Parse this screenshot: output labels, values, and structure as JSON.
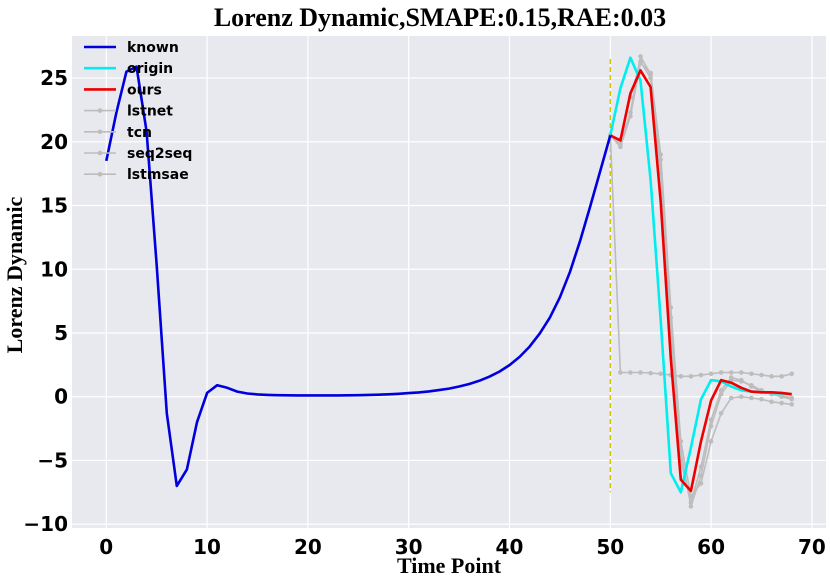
{
  "chart_data": {
    "type": "line",
    "title": "Lorenz Dynamic,SMAPE:0.15,RAE:0.03",
    "xlabel": "Time Point",
    "ylabel": "Lorenz Dynamic",
    "xlim": [
      -3.4,
      71.4
    ],
    "ylim": [
      -10.3,
      28.3
    ],
    "xticks": [
      0,
      10,
      20,
      30,
      40,
      50,
      60,
      70
    ],
    "yticks": [
      -10,
      -5,
      0,
      5,
      10,
      15,
      20,
      25
    ],
    "ytick_labels": [
      "−10",
      "−5",
      "0",
      "5",
      "10",
      "15",
      "20",
      "25"
    ],
    "grid": true,
    "legend_position": "top-left",
    "background": "#e8e8ef",
    "vline": {
      "x": 50,
      "ymin": -7.5,
      "ymax": 26.5,
      "color": "#d4c400"
    },
    "series": [
      {
        "name": "known",
        "color": "#0000dd",
        "width": 2.6,
        "marker": "none",
        "x": [
          0,
          1,
          2,
          3,
          4,
          5,
          6,
          7,
          8,
          9,
          10,
          11,
          12,
          13,
          14,
          15,
          16,
          17,
          18,
          19,
          20,
          21,
          22,
          23,
          24,
          25,
          26,
          27,
          28,
          29,
          30,
          31,
          32,
          33,
          34,
          35,
          36,
          37,
          38,
          39,
          40,
          41,
          42,
          43,
          44,
          45,
          46,
          47,
          48,
          49,
          50
        ],
        "y": [
          18.5,
          22.3,
          25.5,
          25.9,
          20.8,
          10.3,
          -1.3,
          -7.0,
          -5.7,
          -2.0,
          0.3,
          0.9,
          0.7,
          0.4,
          0.25,
          0.18,
          0.14,
          0.12,
          0.11,
          0.1,
          0.1,
          0.1,
          0.1,
          0.1,
          0.11,
          0.12,
          0.14,
          0.16,
          0.19,
          0.23,
          0.28,
          0.34,
          0.42,
          0.52,
          0.64,
          0.8,
          1.0,
          1.25,
          1.57,
          1.97,
          2.48,
          3.12,
          3.93,
          4.95,
          6.2,
          7.8,
          9.8,
          12.2,
          14.9,
          17.7,
          20.5
        ]
      },
      {
        "name": "origin",
        "color": "#00eeee",
        "width": 2.6,
        "marker": "none",
        "x": [
          50,
          51,
          52,
          53,
          54,
          55,
          56,
          57,
          58,
          59,
          60,
          61,
          62,
          63,
          64,
          65,
          66,
          67,
          68
        ],
        "y": [
          20.5,
          24.2,
          26.6,
          24.8,
          17.0,
          6.0,
          -6.0,
          -7.5,
          -4.0,
          -0.2,
          1.3,
          1.2,
          0.8,
          0.5,
          0.4,
          0.35,
          0.3,
          0.25,
          0.2
        ]
      },
      {
        "name": "ours",
        "color": "#ee0000",
        "width": 2.6,
        "marker": "none",
        "x": [
          50,
          51,
          52,
          53,
          54,
          55,
          56,
          57,
          58,
          59,
          60,
          61,
          62,
          63,
          64,
          65,
          66,
          67,
          68
        ],
        "y": [
          20.5,
          20.1,
          23.8,
          25.6,
          24.3,
          15.3,
          3.0,
          -6.5,
          -7.4,
          -3.5,
          -0.3,
          1.3,
          1.1,
          0.7,
          0.4,
          0.35,
          0.35,
          0.3,
          0.2
        ]
      },
      {
        "name": "lstnet",
        "color": "#bdbdbd",
        "width": 1.6,
        "marker": "dot",
        "x": [
          50,
          51,
          52,
          53,
          54,
          55,
          56,
          57,
          58,
          59,
          60,
          61,
          62,
          63,
          64,
          65,
          66,
          67,
          68
        ],
        "y": [
          20.5,
          19.8,
          22.3,
          26.7,
          25.3,
          18.6,
          6.2,
          -4.3,
          -8.6,
          -6.2,
          -2.3,
          0.2,
          1.3,
          1.2,
          0.9,
          0.5,
          0.2,
          0.1,
          -0.1
        ]
      },
      {
        "name": "tcn",
        "color": "#bdbdbd",
        "width": 1.6,
        "marker": "dot",
        "x": [
          50,
          51,
          52,
          53,
          54,
          55,
          56,
          57,
          58,
          59,
          60,
          61,
          62,
          63,
          64,
          65,
          66,
          67,
          68
        ],
        "y": [
          20.5,
          1.9,
          1.9,
          1.9,
          1.85,
          1.8,
          1.7,
          1.6,
          1.6,
          1.7,
          1.8,
          1.9,
          1.9,
          1.9,
          1.8,
          1.7,
          1.6,
          1.6,
          1.8
        ]
      },
      {
        "name": "seq2seq",
        "color": "#bdbdbd",
        "width": 1.6,
        "marker": "dot",
        "x": [
          50,
          51,
          52,
          53,
          54,
          55,
          56,
          57,
          58,
          59,
          60,
          61,
          62,
          63,
          64,
          65,
          66,
          67,
          68
        ],
        "y": [
          20.5,
          20.2,
          23.5,
          26.3,
          25.0,
          17.5,
          5.0,
          -5.0,
          -8.3,
          -5.5,
          -1.8,
          0.5,
          1.5,
          1.3,
          0.8,
          0.4,
          0.2,
          0.0,
          -0.2
        ]
      },
      {
        "name": "lstmsae",
        "color": "#bdbdbd",
        "width": 1.6,
        "marker": "dot",
        "x": [
          50,
          51,
          52,
          53,
          54,
          55,
          56,
          57,
          58,
          59,
          60,
          61,
          62,
          63,
          64,
          65,
          66,
          67,
          68
        ],
        "y": [
          20.5,
          19.6,
          22.0,
          26.2,
          25.4,
          19.0,
          7.0,
          -3.5,
          -7.8,
          -6.8,
          -3.5,
          -1.3,
          -0.1,
          0.0,
          -0.1,
          -0.2,
          -0.4,
          -0.5,
          -0.6
        ]
      }
    ]
  }
}
